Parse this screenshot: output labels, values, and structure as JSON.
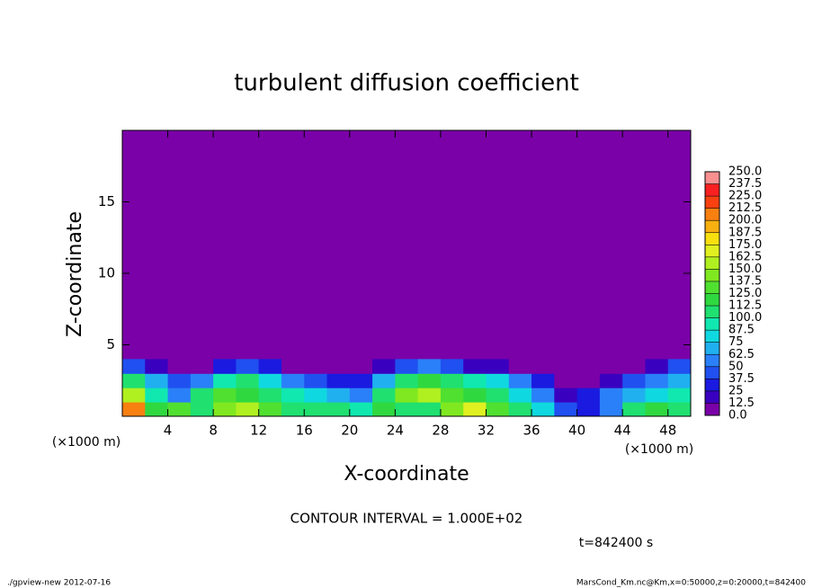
{
  "chart_data": {
    "type": "contour",
    "title": "turbulent diffusion coefficient",
    "x_label": "X-coordinate",
    "y_label": "Z-coordinate",
    "x_unit": "(×1000 m)",
    "y_unit": "(×1000 m)",
    "xlim": [
      0,
      50
    ],
    "ylim": [
      0,
      20
    ],
    "xticks": [
      4,
      8,
      12,
      16,
      20,
      24,
      28,
      32,
      36,
      40,
      44,
      48
    ],
    "yticks": [
      5,
      10,
      15
    ],
    "x": [
      1,
      3,
      5,
      7,
      9,
      11,
      13,
      15,
      17,
      19,
      21,
      23,
      25,
      27,
      29,
      31,
      33,
      35,
      37,
      39,
      41,
      43,
      45,
      47,
      49
    ],
    "y": [
      0.5,
      1.5,
      2.5,
      3.5
    ],
    "z": [
      [
        200,
        120,
        130,
        110,
        140,
        150,
        130,
        110,
        100,
        110,
        90,
        120,
        110,
        100,
        140,
        170,
        130,
        110,
        80,
        40,
        30,
        60,
        110,
        120,
        100
      ],
      [
        150,
        90,
        60,
        100,
        130,
        120,
        110,
        90,
        80,
        70,
        60,
        100,
        140,
        150,
        130,
        120,
        100,
        80,
        50,
        20,
        30,
        50,
        70,
        80,
        90
      ],
      [
        110,
        70,
        40,
        60,
        90,
        100,
        80,
        50,
        40,
        30,
        30,
        70,
        110,
        120,
        100,
        90,
        80,
        60,
        30,
        10,
        5,
        20,
        40,
        60,
        70
      ],
      [
        40,
        20,
        10,
        10,
        30,
        40,
        30,
        10,
        10,
        5,
        5,
        20,
        40,
        50,
        40,
        20,
        20,
        10,
        5,
        0,
        0,
        0,
        5,
        20,
        40
      ]
    ],
    "levels": [
      {
        "value": 0,
        "label": "0.0"
      },
      12.5,
      25,
      37.5,
      50,
      62.5,
      75,
      87.5,
      {
        "value": 100,
        "label": "100.0"
      },
      112.5,
      {
        "value": 125,
        "label": "125.0"
      },
      137.5,
      {
        "value": 150,
        "label": "150.0"
      },
      162.5,
      {
        "value": 175,
        "label": "175.0"
      },
      187.5,
      {
        "value": 200,
        "label": "200.0"
      },
      212.5,
      {
        "value": 225,
        "label": "225.0"
      },
      237.5,
      {
        "value": 250,
        "label": "250.0"
      }
    ],
    "colors": [
      "#7a00a8",
      "#3a00c0",
      "#1a1ae0",
      "#2050f0",
      "#2a80f8",
      "#20b0f0",
      "#10d8e0",
      "#10e8b0",
      "#20e070",
      "#30d840",
      "#50e030",
      "#80e820",
      "#b0f020",
      "#e0f020",
      "#f8e010",
      "#f8b010",
      "#f88010",
      "#f84010",
      "#f82020",
      "#f89090"
    ],
    "annotation": "CONTOUR INTERVAL = 1.000E+02",
    "time_label": "t=842400 s",
    "footer_left": "./gpview-new  2012-07-16",
    "footer_right": "MarsCond_Km.nc@Km,x=0:50000,z=0:20000,t=842400"
  }
}
